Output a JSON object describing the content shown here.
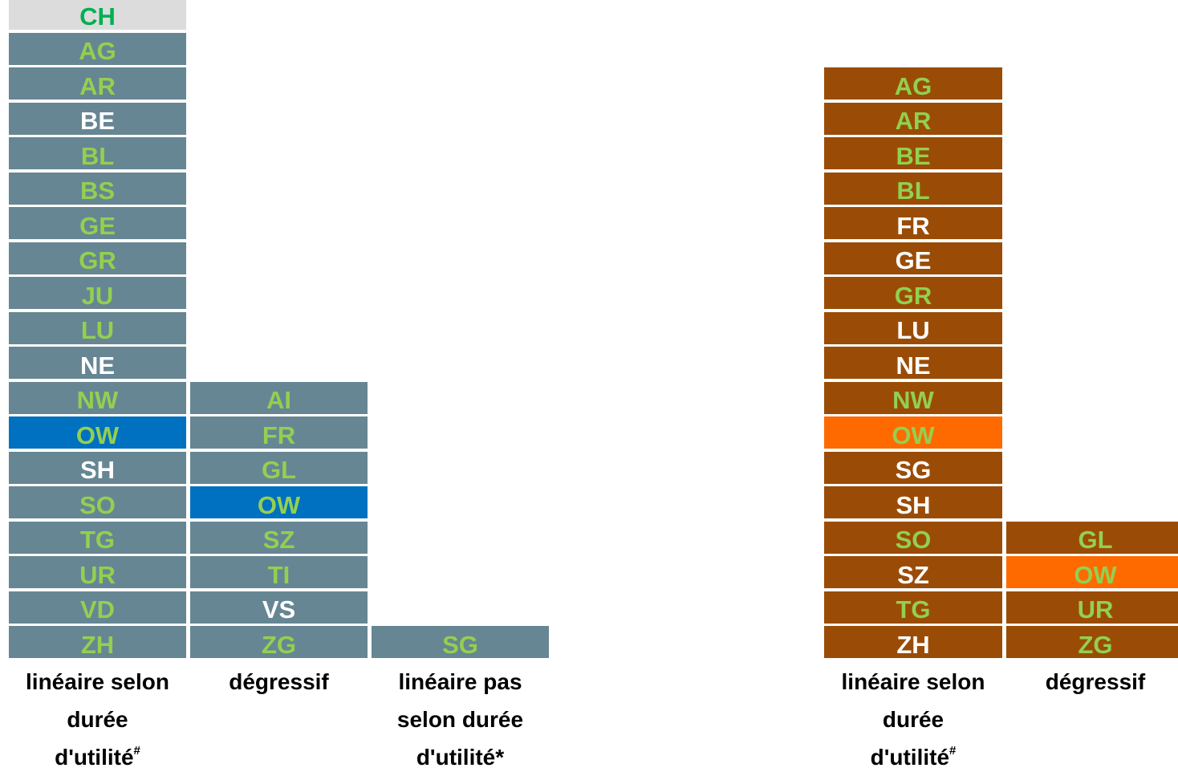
{
  "colors": {
    "gray_block": "#678693",
    "blue_highlight": "#0070c0",
    "brown_block": "#9a4c06",
    "orange_highlight": "#ff6a00",
    "header_bg": "#dcdcdc",
    "text_green": "#92d050",
    "text_white": "#ffffff",
    "header_text": "#00b050"
  },
  "chart_data": [
    {
      "type": "table",
      "header": "CH",
      "columns": [
        {
          "label_lines": [
            "linéaire selon",
            "durée",
            "d'utilité"
          ],
          "label_mark": "#",
          "items": [
            {
              "text": "AG",
              "color": "green"
            },
            {
              "text": "AR",
              "color": "green"
            },
            {
              "text": "BE",
              "color": "white"
            },
            {
              "text": "BL",
              "color": "green"
            },
            {
              "text": "BS",
              "color": "green"
            },
            {
              "text": "GE",
              "color": "green"
            },
            {
              "text": "GR",
              "color": "green"
            },
            {
              "text": "JU",
              "color": "green"
            },
            {
              "text": "LU",
              "color": "green"
            },
            {
              "text": "NE",
              "color": "white"
            },
            {
              "text": "NW",
              "color": "green"
            },
            {
              "text": "OW",
              "color": "green",
              "highlight": true
            },
            {
              "text": "SH",
              "color": "white"
            },
            {
              "text": "SO",
              "color": "green"
            },
            {
              "text": "TG",
              "color": "green"
            },
            {
              "text": "UR",
              "color": "green"
            },
            {
              "text": "VD",
              "color": "green"
            },
            {
              "text": "ZH",
              "color": "green"
            }
          ]
        },
        {
          "label_lines": [
            "dégressif"
          ],
          "label_mark": "",
          "items": [
            {
              "text": "AI",
              "color": "green"
            },
            {
              "text": "FR",
              "color": "green"
            },
            {
              "text": "GL",
              "color": "green"
            },
            {
              "text": "OW",
              "color": "green",
              "highlight": true
            },
            {
              "text": "SZ",
              "color": "green"
            },
            {
              "text": "TI",
              "color": "green"
            },
            {
              "text": "VS",
              "color": "white"
            },
            {
              "text": "ZG",
              "color": "green"
            }
          ]
        },
        {
          "label_lines": [
            "linéaire pas",
            "selon durée",
            "d'utilité*"
          ],
          "label_mark": "",
          "items": [
            {
              "text": "SG",
              "color": "green"
            }
          ]
        }
      ]
    },
    {
      "type": "table",
      "header": "",
      "columns": [
        {
          "label_lines": [
            "linéaire selon",
            "durée",
            "d'utilité"
          ],
          "label_mark": "#",
          "items": [
            {
              "text": "AG",
              "color": "green"
            },
            {
              "text": "AR",
              "color": "green"
            },
            {
              "text": "BE",
              "color": "green"
            },
            {
              "text": "BL",
              "color": "green"
            },
            {
              "text": "FR",
              "color": "white"
            },
            {
              "text": "GE",
              "color": "white"
            },
            {
              "text": "GR",
              "color": "green"
            },
            {
              "text": "LU",
              "color": "white"
            },
            {
              "text": "NE",
              "color": "white"
            },
            {
              "text": "NW",
              "color": "green"
            },
            {
              "text": "OW",
              "color": "green",
              "highlight": true
            },
            {
              "text": "SG",
              "color": "white"
            },
            {
              "text": "SH",
              "color": "white"
            },
            {
              "text": "SO",
              "color": "green"
            },
            {
              "text": "SZ",
              "color": "white"
            },
            {
              "text": "TG",
              "color": "green"
            },
            {
              "text": "ZH",
              "color": "white"
            }
          ]
        },
        {
          "label_lines": [
            "dégressif"
          ],
          "label_mark": "",
          "items": [
            {
              "text": "GL",
              "color": "green"
            },
            {
              "text": "OW",
              "color": "green",
              "highlight": true
            },
            {
              "text": "UR",
              "color": "green"
            },
            {
              "text": "ZG",
              "color": "green"
            }
          ]
        }
      ]
    }
  ]
}
